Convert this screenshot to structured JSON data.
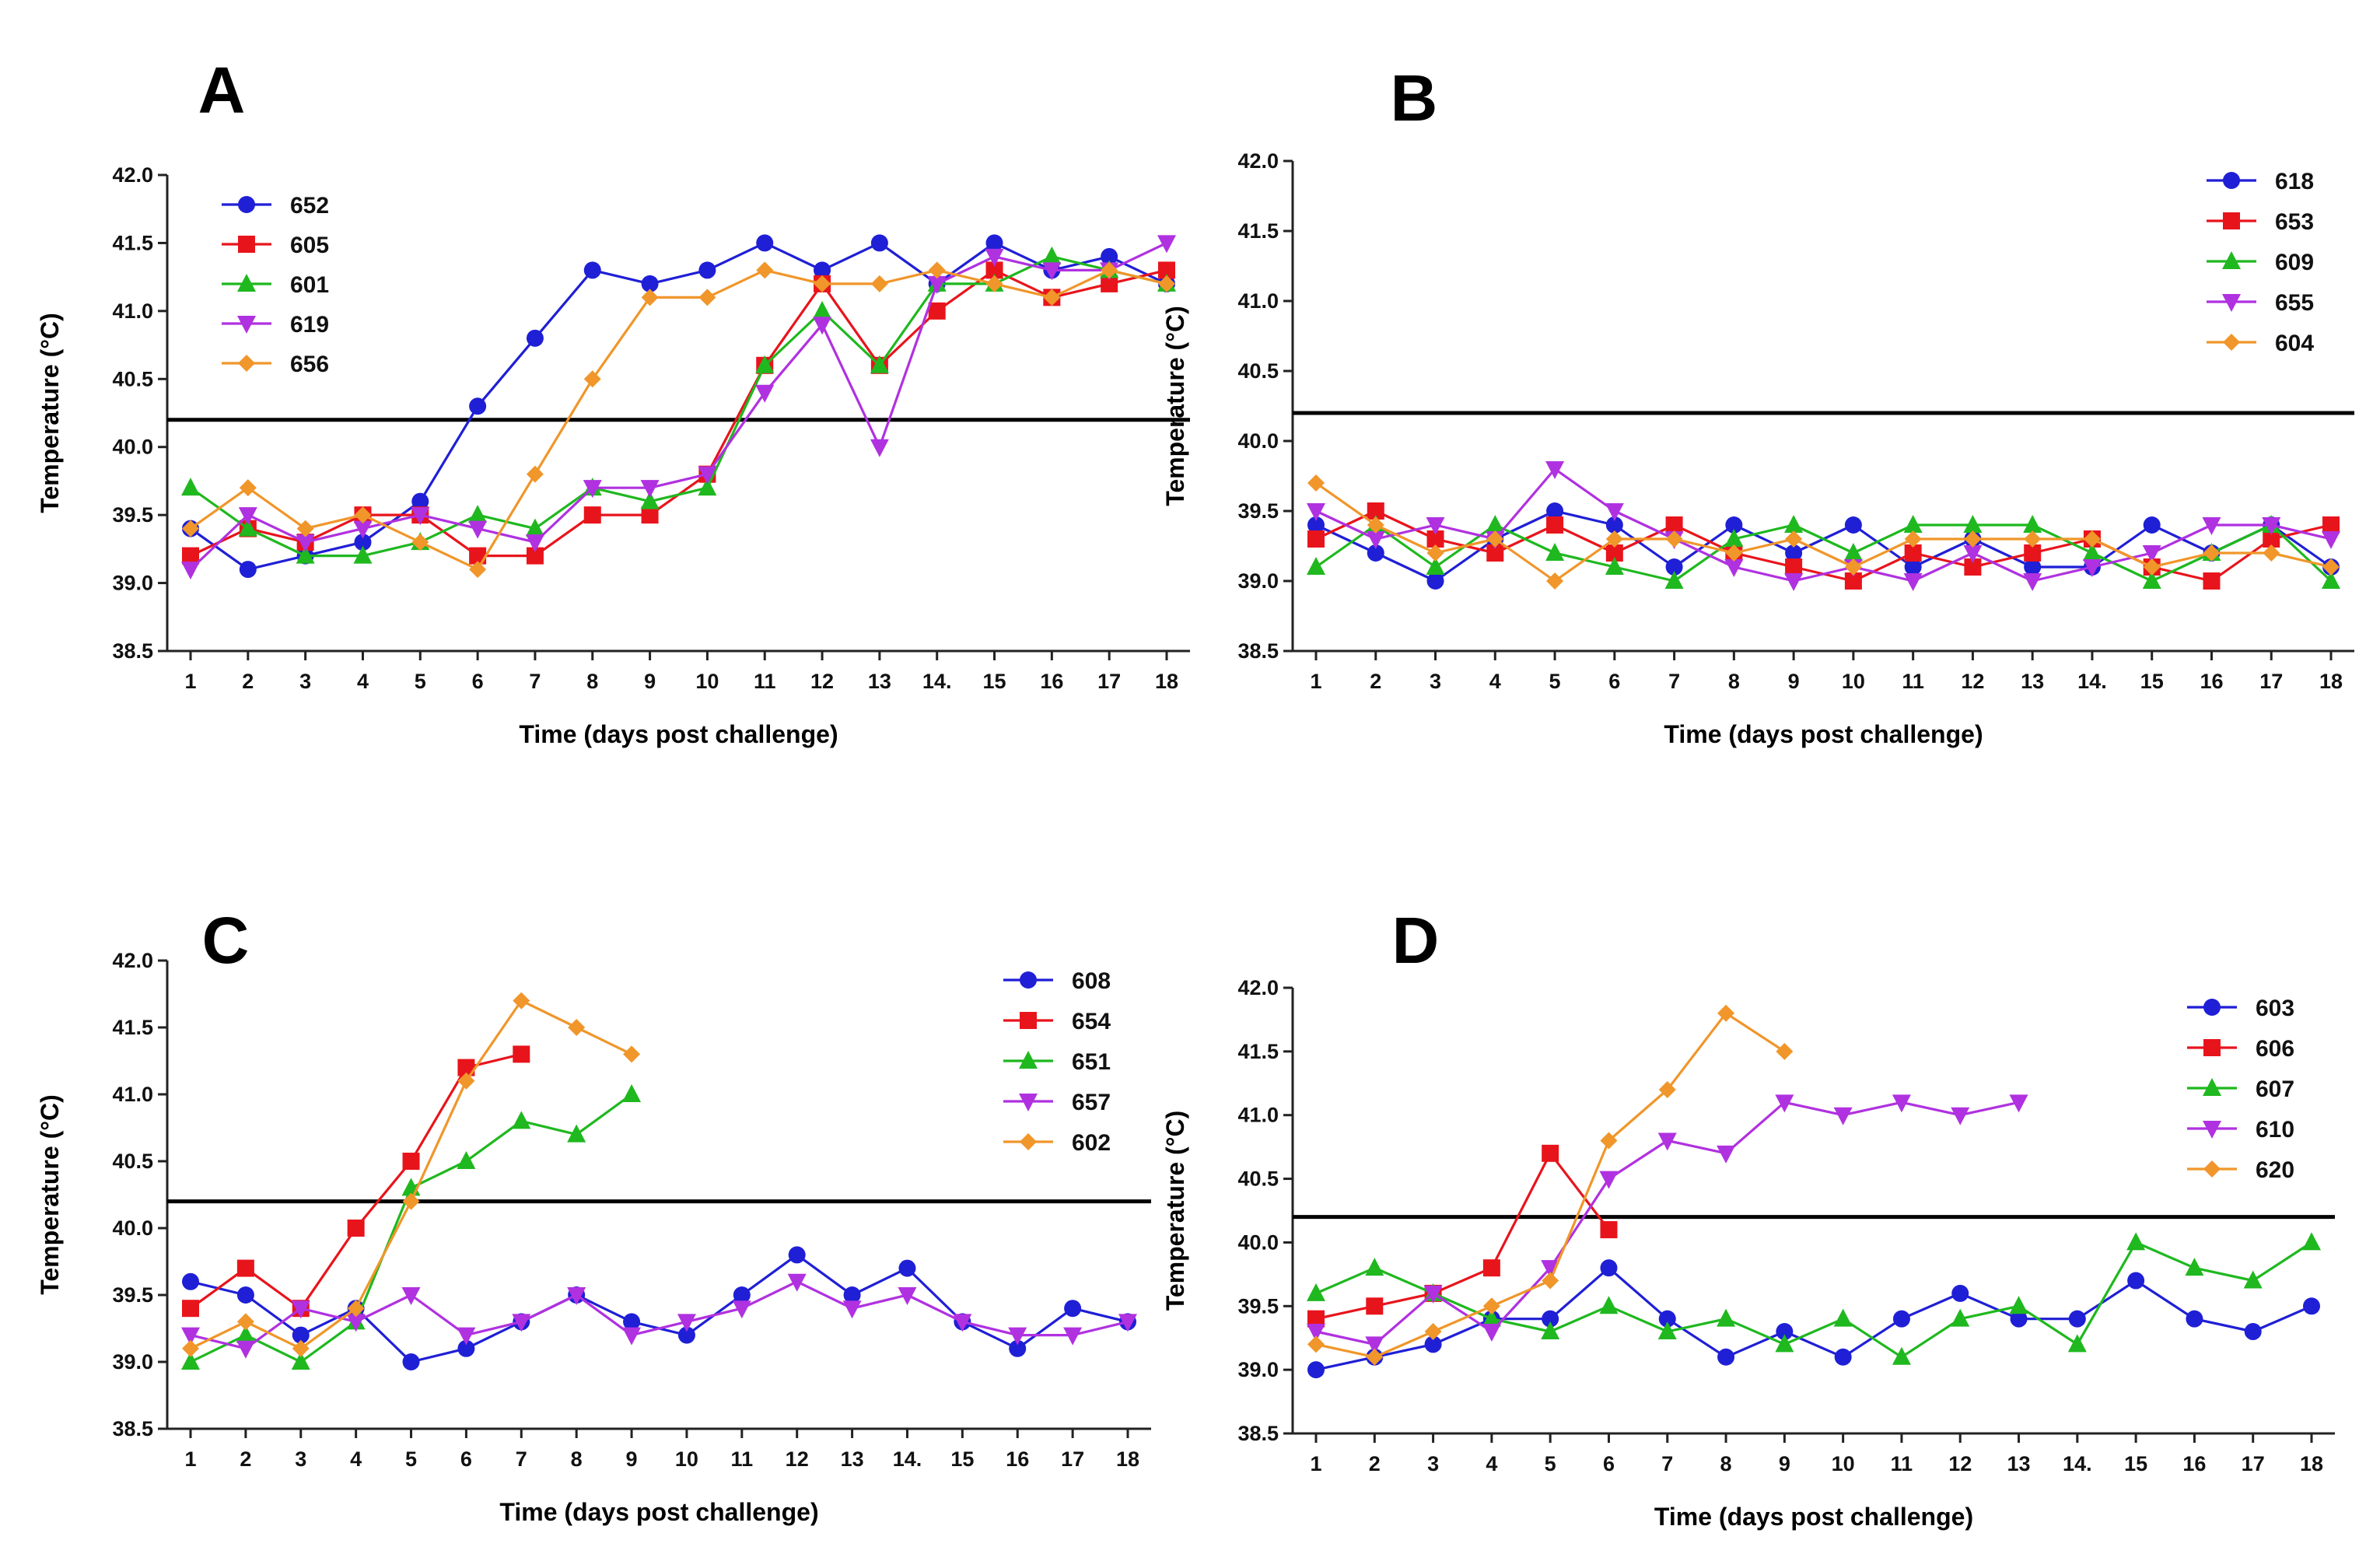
{
  "figure": {
    "type": "multi-panel line chart"
  },
  "chart_data": [
    {
      "type": "line",
      "title": "A",
      "xlabel": "Time (days post challenge)",
      "ylabel": "Temperature (°C)",
      "xticks": [
        "1",
        "2",
        "3",
        "4",
        "5",
        "6",
        "7",
        "8",
        "9",
        "10",
        "11",
        "12",
        "13",
        "14.",
        "15",
        "16",
        "17",
        "18"
      ],
      "yticks": [
        "38.5",
        "39.0",
        "39.5",
        "40.0",
        "40.5",
        "41.0",
        "41.5",
        "42.0"
      ],
      "ylim": [
        38.5,
        42.0
      ],
      "threshold": 40.2,
      "legend_position": "top-left",
      "series": [
        {
          "name": "652",
          "color": "#1f1fd6",
          "marker": "circle",
          "values": [
            39.4,
            39.1,
            39.2,
            39.3,
            39.6,
            40.3,
            40.8,
            41.3,
            41.2,
            41.3,
            41.5,
            41.3,
            41.5,
            41.2,
            41.5,
            41.3,
            41.4,
            41.2
          ]
        },
        {
          "name": "605",
          "color": "#e8141c",
          "marker": "square",
          "values": [
            39.2,
            39.4,
            39.3,
            39.5,
            39.5,
            39.2,
            39.2,
            39.5,
            39.5,
            39.8,
            40.6,
            41.2,
            40.6,
            41.0,
            41.3,
            41.1,
            41.2,
            41.3
          ]
        },
        {
          "name": "601",
          "color": "#1fb81f",
          "marker": "triangle-up",
          "values": [
            39.7,
            39.4,
            39.2,
            39.2,
            39.3,
            39.5,
            39.4,
            39.7,
            39.6,
            39.7,
            40.6,
            41.0,
            40.6,
            41.2,
            41.2,
            41.4,
            41.3,
            41.2
          ]
        },
        {
          "name": "619",
          "color": "#b031e0",
          "marker": "triangle-down",
          "values": [
            39.1,
            39.5,
            39.3,
            39.4,
            39.5,
            39.4,
            39.3,
            39.7,
            39.7,
            39.8,
            40.4,
            40.9,
            40.0,
            41.2,
            41.4,
            41.3,
            41.3,
            41.5
          ]
        },
        {
          "name": "656",
          "color": "#f0962a",
          "marker": "diamond",
          "values": [
            39.4,
            39.7,
            39.4,
            39.5,
            39.3,
            39.1,
            39.8,
            40.5,
            41.1,
            41.1,
            41.3,
            41.2,
            41.2,
            41.3,
            41.2,
            41.1,
            41.3,
            41.2
          ]
        }
      ]
    },
    {
      "type": "line",
      "title": "B",
      "xlabel": "Time (days post challenge)",
      "ylabel": "Temperature (°C)",
      "xticks": [
        "1",
        "2",
        "3",
        "4",
        "5",
        "6",
        "7",
        "8",
        "9",
        "10",
        "11",
        "12",
        "13",
        "14.",
        "15",
        "16",
        "17",
        "18"
      ],
      "yticks": [
        "38.5",
        "39.0",
        "39.5",
        "40.0",
        "40.5",
        "41.0",
        "41.5",
        "42.0"
      ],
      "ylim": [
        38.5,
        42.0
      ],
      "threshold": 40.2,
      "legend_position": "top-right",
      "series": [
        {
          "name": "618",
          "color": "#1f1fd6",
          "marker": "circle",
          "values": [
            39.4,
            39.2,
            39.0,
            39.3,
            39.5,
            39.4,
            39.1,
            39.4,
            39.2,
            39.4,
            39.1,
            39.3,
            39.1,
            39.1,
            39.4,
            39.2,
            39.4,
            39.1
          ]
        },
        {
          "name": "653",
          "color": "#e8141c",
          "marker": "square",
          "values": [
            39.3,
            39.5,
            39.3,
            39.2,
            39.4,
            39.2,
            39.4,
            39.2,
            39.1,
            39.0,
            39.2,
            39.1,
            39.2,
            39.3,
            39.1,
            39.0,
            39.3,
            39.4
          ]
        },
        {
          "name": "609",
          "color": "#1fb81f",
          "marker": "triangle-up",
          "values": [
            39.1,
            39.4,
            39.1,
            39.4,
            39.2,
            39.1,
            39.0,
            39.3,
            39.4,
            39.2,
            39.4,
            39.4,
            39.4,
            39.2,
            39.0,
            39.2,
            39.4,
            39.0
          ]
        },
        {
          "name": "655",
          "color": "#b031e0",
          "marker": "triangle-down",
          "values": [
            39.5,
            39.3,
            39.4,
            39.3,
            39.8,
            39.5,
            39.3,
            39.1,
            39.0,
            39.1,
            39.0,
            39.2,
            39.0,
            39.1,
            39.2,
            39.4,
            39.4,
            39.3
          ]
        },
        {
          "name": "604",
          "color": "#f0962a",
          "marker": "diamond",
          "values": [
            39.7,
            39.4,
            39.2,
            39.3,
            39.0,
            39.3,
            39.3,
            39.2,
            39.3,
            39.1,
            39.3,
            39.3,
            39.3,
            39.3,
            39.1,
            39.2,
            39.2,
            39.1
          ]
        }
      ]
    },
    {
      "type": "line",
      "title": "C",
      "xlabel": "Time (days post challenge)",
      "ylabel": "Temperature (°C)",
      "xticks": [
        "1",
        "2",
        "3",
        "4",
        "5",
        "6",
        "7",
        "8",
        "9",
        "10",
        "11",
        "12",
        "13",
        "14.",
        "15",
        "16",
        "17",
        "18"
      ],
      "yticks": [
        "38.5",
        "39.0",
        "39.5",
        "40.0",
        "40.5",
        "41.0",
        "41.5",
        "42.0"
      ],
      "ylim": [
        38.5,
        42.0
      ],
      "threshold": 40.2,
      "legend_position": "top-right",
      "series": [
        {
          "name": "608",
          "color": "#1f1fd6",
          "marker": "circle",
          "values": [
            39.6,
            39.5,
            39.2,
            39.4,
            39.0,
            39.1,
            39.3,
            39.5,
            39.3,
            39.2,
            39.5,
            39.8,
            39.5,
            39.7,
            39.3,
            39.1,
            39.4,
            39.3
          ]
        },
        {
          "name": "654",
          "color": "#e8141c",
          "marker": "square",
          "values": [
            39.4,
            39.7,
            39.4,
            40.0,
            40.5,
            41.2,
            41.3,
            null,
            null,
            null,
            null,
            null,
            null,
            null,
            null,
            null,
            null,
            null
          ]
        },
        {
          "name": "651",
          "color": "#1fb81f",
          "marker": "triangle-up",
          "values": [
            39.0,
            39.2,
            39.0,
            39.3,
            40.3,
            40.5,
            40.8,
            40.7,
            41.0,
            null,
            null,
            null,
            null,
            null,
            null,
            null,
            null,
            null
          ]
        },
        {
          "name": "657",
          "color": "#b031e0",
          "marker": "triangle-down",
          "values": [
            39.2,
            39.1,
            39.4,
            39.3,
            39.5,
            39.2,
            39.3,
            39.5,
            39.2,
            39.3,
            39.4,
            39.6,
            39.4,
            39.5,
            39.3,
            39.2,
            39.2,
            39.3
          ]
        },
        {
          "name": "602",
          "color": "#f0962a",
          "marker": "diamond",
          "values": [
            39.1,
            39.3,
            39.1,
            39.4,
            40.2,
            41.1,
            41.7,
            41.5,
            41.3,
            null,
            null,
            null,
            null,
            null,
            null,
            null,
            null,
            null
          ]
        }
      ]
    },
    {
      "type": "line",
      "title": "D",
      "xlabel": "Time (days post challenge)",
      "ylabel": "Temperature (°C)",
      "xticks": [
        "1",
        "2",
        "3",
        "4",
        "5",
        "6",
        "7",
        "8",
        "9",
        "10",
        "11",
        "12",
        "13",
        "14.",
        "15",
        "16",
        "17",
        "18"
      ],
      "yticks": [
        "38.5",
        "39.0",
        "39.5",
        "40.0",
        "40.5",
        "41.0",
        "41.5",
        "42.0"
      ],
      "ylim": [
        38.5,
        42.0
      ],
      "threshold": 40.2,
      "legend_position": "top-right",
      "series": [
        {
          "name": "603",
          "color": "#1f1fd6",
          "marker": "circle",
          "values": [
            39.0,
            39.1,
            39.2,
            39.4,
            39.4,
            39.8,
            39.4,
            39.1,
            39.3,
            39.1,
            39.4,
            39.6,
            39.4,
            39.4,
            39.7,
            39.4,
            39.3,
            39.5
          ]
        },
        {
          "name": "606",
          "color": "#e8141c",
          "marker": "square",
          "values": [
            39.4,
            39.5,
            39.6,
            39.8,
            40.7,
            40.1,
            null,
            null,
            null,
            null,
            null,
            null,
            null,
            null,
            null,
            null,
            null,
            null
          ]
        },
        {
          "name": "607",
          "color": "#1fb81f",
          "marker": "triangle-up",
          "values": [
            39.6,
            39.8,
            39.6,
            39.4,
            39.3,
            39.5,
            39.3,
            39.4,
            39.2,
            39.4,
            39.1,
            39.4,
            39.5,
            39.2,
            40.0,
            39.8,
            39.7,
            40.0
          ]
        },
        {
          "name": "610",
          "color": "#b031e0",
          "marker": "triangle-down",
          "values": [
            39.3,
            39.2,
            39.6,
            39.3,
            39.8,
            40.5,
            40.8,
            40.7,
            41.1,
            41.0,
            41.1,
            41.0,
            41.1,
            null,
            null,
            null,
            null,
            null
          ]
        },
        {
          "name": "620",
          "color": "#f0962a",
          "marker": "diamond",
          "values": [
            39.2,
            39.1,
            39.3,
            39.5,
            39.7,
            40.8,
            41.2,
            41.8,
            41.5,
            null,
            null,
            null,
            null,
            null,
            null,
            null,
            null,
            null
          ]
        }
      ]
    }
  ]
}
